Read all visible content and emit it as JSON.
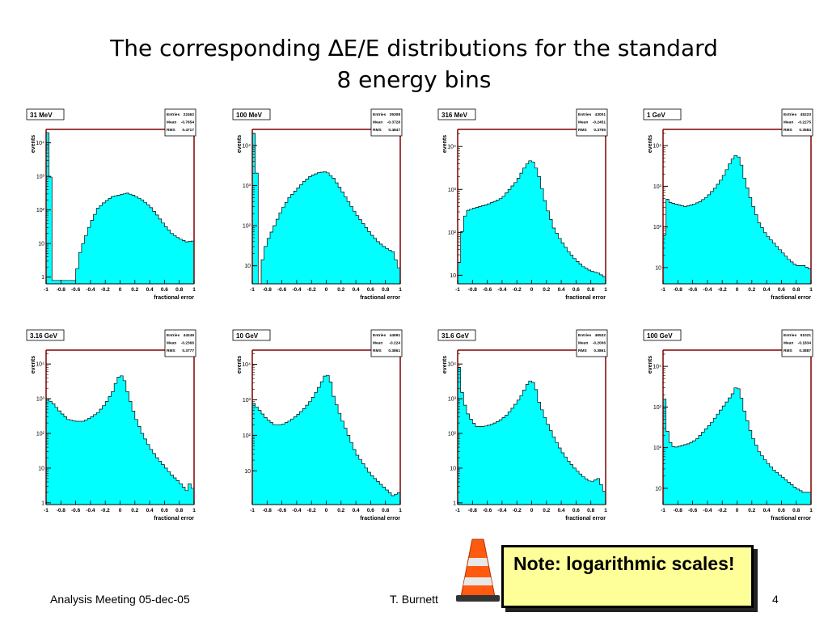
{
  "slide": {
    "title_line1": "The corresponding ∆E/E distributions for the standard",
    "title_line2": "8 energy bins",
    "note": "Note: logarithmic scales!",
    "footer_left": "Analysis Meeting 05-dec-05",
    "footer_center": "T. Burnett",
    "page_number": "4"
  },
  "colors": {
    "fill": "#00ffff",
    "frame": "#800000",
    "text": "#000000",
    "note_bg": "#ffff99"
  },
  "icons": [
    "traffic-cone-icon"
  ],
  "chart_data": [
    {
      "type": "area",
      "label": "31 MeV",
      "stats": {
        "entries_label": "Entries",
        "entries": "22462",
        "mean_label": "Mean",
        "mean": "-0.7654",
        "rms_label": "RMS",
        "rms": "0.4717"
      },
      "xlabel": "fractional error",
      "ylabel": "events",
      "xlim": [
        -1,
        1
      ],
      "ylim_exp": [
        -0.2,
        4.4
      ],
      "yscale": "log",
      "yticks": [
        {
          "v": 0,
          "label": "1"
        },
        {
          "v": 1,
          "label": "10"
        },
        {
          "v": 2,
          "label": "10²"
        },
        {
          "v": 3,
          "label": "10³"
        },
        {
          "v": 4,
          "label": "10⁴"
        }
      ],
      "xticks": [
        "-1",
        "-0.8",
        "-0.6",
        "-0.4",
        "-0.2",
        "0",
        "0.2",
        "0.4",
        "0.6",
        "0.8",
        "1"
      ],
      "curve": [
        [
          -0.98,
          4.3
        ],
        [
          -0.95,
          3.75
        ],
        [
          -0.9,
          -0.1
        ],
        [
          -0.75,
          -0.1
        ],
        [
          -0.6,
          -0.1
        ],
        [
          -0.56,
          0.6
        ],
        [
          -0.5,
          1.0
        ],
        [
          -0.4,
          1.6
        ],
        [
          -0.3,
          2.05
        ],
        [
          -0.2,
          2.25
        ],
        [
          -0.1,
          2.4
        ],
        [
          0.0,
          2.45
        ],
        [
          0.1,
          2.5
        ],
        [
          0.2,
          2.42
        ],
        [
          0.3,
          2.3
        ],
        [
          0.4,
          2.12
        ],
        [
          0.5,
          1.85
        ],
        [
          0.6,
          1.55
        ],
        [
          0.7,
          1.3
        ],
        [
          0.8,
          1.15
        ],
        [
          0.9,
          1.05
        ],
        [
          1.0,
          1.08
        ]
      ]
    },
    {
      "type": "area",
      "label": "100 MeV",
      "stats": {
        "entries_label": "Entries",
        "entries": "39308",
        "mean_label": "Mean",
        "mean": "-0.3728",
        "rms_label": "RMS",
        "rms": "0.4847"
      },
      "xlabel": "fractional error",
      "ylabel": "events",
      "xlim": [
        -1,
        1
      ],
      "ylim_exp": [
        0.55,
        4.4
      ],
      "yscale": "log",
      "yticks": [
        {
          "v": 1,
          "label": "10"
        },
        {
          "v": 2,
          "label": "10²"
        },
        {
          "v": 3,
          "label": "10³"
        },
        {
          "v": 4,
          "label": "10⁴"
        }
      ],
      "xticks": [
        "-1",
        "-0.8",
        "-0.6",
        "-0.4",
        "-0.2",
        "0",
        "0.2",
        "0.4",
        "0.6",
        "0.8",
        "1"
      ],
      "curve": [
        [
          -0.98,
          4.3
        ],
        [
          -0.95,
          4.0
        ],
        [
          -0.9,
          0.55
        ],
        [
          -0.85,
          1.3
        ],
        [
          -0.8,
          1.6
        ],
        [
          -0.7,
          2.0
        ],
        [
          -0.6,
          2.4
        ],
        [
          -0.5,
          2.7
        ],
        [
          -0.4,
          2.9
        ],
        [
          -0.3,
          3.1
        ],
        [
          -0.2,
          3.25
        ],
        [
          -0.1,
          3.32
        ],
        [
          0.0,
          3.35
        ],
        [
          0.1,
          3.18
        ],
        [
          0.2,
          2.9
        ],
        [
          0.3,
          2.6
        ],
        [
          0.4,
          2.3
        ],
        [
          0.5,
          2.05
        ],
        [
          0.6,
          1.8
        ],
        [
          0.7,
          1.6
        ],
        [
          0.8,
          1.45
        ],
        [
          0.9,
          1.35
        ],
        [
          1.0,
          0.85
        ]
      ]
    },
    {
      "type": "area",
      "label": "316 MeV",
      "stats": {
        "entries_label": "Entries",
        "entries": "43001",
        "mean_label": "Mean",
        "mean": "-0.2451",
        "rms_label": "RMS",
        "rms": "0.3755"
      },
      "xlabel": "fractional error",
      "ylabel": "events",
      "xlim": [
        -1,
        1
      ],
      "ylim_exp": [
        0.8,
        4.4
      ],
      "yscale": "log",
      "yticks": [
        {
          "v": 1,
          "label": "10"
        },
        {
          "v": 2,
          "label": "10²"
        },
        {
          "v": 3,
          "label": "10³"
        },
        {
          "v": 4,
          "label": "10⁴"
        }
      ],
      "xticks": [
        "-1",
        "-0.8",
        "-0.6",
        "-0.4",
        "-0.2",
        "0",
        "0.2",
        "0.4",
        "0.6",
        "0.8",
        "1"
      ],
      "curve": [
        [
          -0.98,
          1.3
        ],
        [
          -0.93,
          2.2
        ],
        [
          -0.88,
          2.5
        ],
        [
          -0.8,
          2.55
        ],
        [
          -0.7,
          2.6
        ],
        [
          -0.6,
          2.65
        ],
        [
          -0.5,
          2.72
        ],
        [
          -0.4,
          2.8
        ],
        [
          -0.3,
          3.0
        ],
        [
          -0.2,
          3.2
        ],
        [
          -0.1,
          3.5
        ],
        [
          -0.05,
          3.62
        ],
        [
          0.0,
          3.7
        ],
        [
          0.05,
          3.55
        ],
        [
          0.1,
          3.3
        ],
        [
          0.2,
          2.6
        ],
        [
          0.3,
          2.1
        ],
        [
          0.4,
          1.8
        ],
        [
          0.5,
          1.55
        ],
        [
          0.6,
          1.35
        ],
        [
          0.7,
          1.2
        ],
        [
          0.8,
          1.1
        ],
        [
          0.9,
          1.05
        ],
        [
          1.0,
          0.95
        ]
      ]
    },
    {
      "type": "area",
      "label": "1 GeV",
      "stats": {
        "entries_label": "Entries",
        "entries": "45223",
        "mean_label": "Mean",
        "mean": "-0.2275",
        "rms_label": "RMS",
        "rms": "0.3584"
      },
      "xlabel": "fractional error",
      "ylabel": "events",
      "xlim": [
        -1,
        1
      ],
      "ylim_exp": [
        0.6,
        4.4
      ],
      "yscale": "log",
      "yticks": [
        {
          "v": 1,
          "label": "10"
        },
        {
          "v": 2,
          "label": "10²"
        },
        {
          "v": 3,
          "label": "10³"
        },
        {
          "v": 4,
          "label": "10⁴"
        }
      ],
      "xticks": [
        "-1",
        "-0.8",
        "-0.6",
        "-0.4",
        "-0.2",
        "0",
        "0.2",
        "0.4",
        "0.6",
        "0.8",
        "1"
      ],
      "curve": [
        [
          -0.98,
          1.8
        ],
        [
          -0.95,
          2.7
        ],
        [
          -0.9,
          2.6
        ],
        [
          -0.8,
          2.55
        ],
        [
          -0.7,
          2.5
        ],
        [
          -0.6,
          2.55
        ],
        [
          -0.5,
          2.62
        ],
        [
          -0.4,
          2.75
        ],
        [
          -0.3,
          2.95
        ],
        [
          -0.2,
          3.2
        ],
        [
          -0.1,
          3.55
        ],
        [
          -0.05,
          3.7
        ],
        [
          0.0,
          3.8
        ],
        [
          0.05,
          3.6
        ],
        [
          0.1,
          3.2
        ],
        [
          0.2,
          2.6
        ],
        [
          0.3,
          2.1
        ],
        [
          0.4,
          1.8
        ],
        [
          0.5,
          1.6
        ],
        [
          0.6,
          1.4
        ],
        [
          0.7,
          1.2
        ],
        [
          0.8,
          1.05
        ],
        [
          0.9,
          1.05
        ],
        [
          1.0,
          0.95
        ]
      ]
    },
    {
      "type": "area",
      "label": "3.16 GeV",
      "stats": {
        "entries_label": "Entries",
        "entries": "44249",
        "mean_label": "Mean",
        "mean": "-0.2366",
        "rms_label": "RMS",
        "rms": "0.3777"
      },
      "xlabel": "fractional error",
      "ylabel": "events",
      "xlim": [
        -1,
        1
      ],
      "ylim_exp": [
        -0.05,
        4.4
      ],
      "yscale": "log",
      "yticks": [
        {
          "v": 0,
          "label": "1"
        },
        {
          "v": 1,
          "label": "10"
        },
        {
          "v": 2,
          "label": "10²"
        },
        {
          "v": 3,
          "label": "10³"
        },
        {
          "v": 4,
          "label": "10⁴"
        }
      ],
      "xticks": [
        "-1",
        "-0.8",
        "-0.6",
        "-0.4",
        "-0.2",
        "0",
        "0.2",
        "0.4",
        "0.6",
        "0.8",
        "1"
      ],
      "curve": [
        [
          -0.98,
          3.0
        ],
        [
          -0.9,
          2.85
        ],
        [
          -0.8,
          2.6
        ],
        [
          -0.7,
          2.4
        ],
        [
          -0.6,
          2.35
        ],
        [
          -0.5,
          2.35
        ],
        [
          -0.4,
          2.45
        ],
        [
          -0.3,
          2.6
        ],
        [
          -0.2,
          2.85
        ],
        [
          -0.1,
          3.2
        ],
        [
          -0.05,
          3.5
        ],
        [
          0.0,
          3.7
        ],
        [
          0.05,
          3.6
        ],
        [
          0.1,
          3.2
        ],
        [
          0.2,
          2.5
        ],
        [
          0.3,
          2.0
        ],
        [
          0.4,
          1.6
        ],
        [
          0.5,
          1.3
        ],
        [
          0.6,
          1.05
        ],
        [
          0.7,
          0.8
        ],
        [
          0.8,
          0.6
        ],
        [
          0.9,
          0.35
        ],
        [
          0.95,
          0.6
        ],
        [
          1.0,
          0.3
        ]
      ]
    },
    {
      "type": "area",
      "label": "10 GeV",
      "stats": {
        "entries_label": "Entries",
        "entries": "44591",
        "mean_label": "Mean",
        "mean": "-0.224",
        "rms_label": "RMS",
        "rms": "0.3861"
      },
      "xlabel": "fractional error",
      "ylabel": "events",
      "xlim": [
        -1,
        1
      ],
      "ylim_exp": [
        0.05,
        4.4
      ],
      "yscale": "log",
      "yticks": [
        {
          "v": 1,
          "label": "10"
        },
        {
          "v": 2,
          "label": "10²"
        },
        {
          "v": 3,
          "label": "10³"
        },
        {
          "v": 4,
          "label": "10⁴"
        }
      ],
      "xticks": [
        "-1",
        "-0.8",
        "-0.6",
        "-0.4",
        "-0.2",
        "0",
        "0.2",
        "0.4",
        "0.6",
        "0.8",
        "1"
      ],
      "curve": [
        [
          -0.98,
          2.9
        ],
        [
          -0.9,
          2.7
        ],
        [
          -0.8,
          2.45
        ],
        [
          -0.7,
          2.3
        ],
        [
          -0.6,
          2.3
        ],
        [
          -0.5,
          2.4
        ],
        [
          -0.4,
          2.55
        ],
        [
          -0.3,
          2.75
        ],
        [
          -0.2,
          3.0
        ],
        [
          -0.1,
          3.35
        ],
        [
          -0.05,
          3.55
        ],
        [
          0.0,
          3.75
        ],
        [
          0.05,
          3.6
        ],
        [
          0.1,
          3.1
        ],
        [
          0.2,
          2.5
        ],
        [
          0.3,
          2.0
        ],
        [
          0.4,
          1.5
        ],
        [
          0.5,
          1.2
        ],
        [
          0.6,
          0.9
        ],
        [
          0.7,
          0.7
        ],
        [
          0.8,
          0.5
        ],
        [
          0.9,
          0.3
        ],
        [
          1.0,
          0.4
        ]
      ]
    },
    {
      "type": "area",
      "label": "31.6 GeV",
      "stats": {
        "entries_label": "Entries",
        "entries": "46532",
        "mean_label": "Mean",
        "mean": "-0.2006",
        "rms_label": "RMS",
        "rms": "0.3861"
      },
      "xlabel": "fractional error",
      "ylabel": "events",
      "xlim": [
        -1,
        1
      ],
      "ylim_exp": [
        -0.05,
        4.4
      ],
      "yscale": "log",
      "yticks": [
        {
          "v": 0,
          "label": "1"
        },
        {
          "v": 1,
          "label": "10"
        },
        {
          "v": 2,
          "label": "10²"
        },
        {
          "v": 3,
          "label": "10³"
        },
        {
          "v": 4,
          "label": "10⁴"
        }
      ],
      "xticks": [
        "-1",
        "-0.8",
        "-0.6",
        "-0.4",
        "-0.2",
        "0",
        "0.2",
        "0.4",
        "0.6",
        "0.8",
        "1"
      ],
      "curve": [
        [
          -0.98,
          3.9
        ],
        [
          -0.93,
          3.0
        ],
        [
          -0.85,
          2.5
        ],
        [
          -0.75,
          2.2
        ],
        [
          -0.65,
          2.2
        ],
        [
          -0.55,
          2.25
        ],
        [
          -0.45,
          2.35
        ],
        [
          -0.35,
          2.5
        ],
        [
          -0.25,
          2.75
        ],
        [
          -0.15,
          3.05
        ],
        [
          -0.05,
          3.45
        ],
        [
          0.0,
          3.55
        ],
        [
          0.05,
          3.35
        ],
        [
          0.1,
          2.9
        ],
        [
          0.2,
          2.35
        ],
        [
          0.3,
          1.9
        ],
        [
          0.4,
          1.5
        ],
        [
          0.5,
          1.2
        ],
        [
          0.6,
          0.95
        ],
        [
          0.7,
          0.75
        ],
        [
          0.8,
          0.6
        ],
        [
          0.9,
          0.7
        ],
        [
          1.0,
          0.25
        ]
      ]
    },
    {
      "type": "area",
      "label": "100 GeV",
      "stats": {
        "entries_label": "Entries",
        "entries": "51021",
        "mean_label": "Mean",
        "mean": "-0.1834",
        "rms_label": "RMS",
        "rms": "0.3887"
      },
      "xlabel": "fractional error",
      "ylabel": "events",
      "xlim": [
        -1,
        1
      ],
      "ylim_exp": [
        0.6,
        4.4
      ],
      "yscale": "log",
      "yticks": [
        {
          "v": 1,
          "label": "10"
        },
        {
          "v": 2,
          "label": "10²"
        },
        {
          "v": 3,
          "label": "10³"
        },
        {
          "v": 4,
          "label": "10⁴"
        }
      ],
      "xticks": [
        "-1",
        "-0.8",
        "-0.6",
        "-0.4",
        "-0.2",
        "0",
        "0.2",
        "0.4",
        "0.6",
        "0.8",
        "1"
      ],
      "curve": [
        [
          -0.98,
          3.2
        ],
        [
          -0.93,
          2.2
        ],
        [
          -0.85,
          2.0
        ],
        [
          -0.75,
          2.05
        ],
        [
          -0.65,
          2.1
        ],
        [
          -0.55,
          2.2
        ],
        [
          -0.45,
          2.4
        ],
        [
          -0.35,
          2.6
        ],
        [
          -0.25,
          2.85
        ],
        [
          -0.15,
          3.1
        ],
        [
          -0.05,
          3.35
        ],
        [
          0.0,
          3.55
        ],
        [
          0.05,
          3.3
        ],
        [
          0.1,
          2.9
        ],
        [
          0.2,
          2.3
        ],
        [
          0.3,
          1.9
        ],
        [
          0.4,
          1.65
        ],
        [
          0.5,
          1.45
        ],
        [
          0.6,
          1.3
        ],
        [
          0.7,
          1.15
        ],
        [
          0.8,
          1.0
        ],
        [
          0.9,
          0.9
        ],
        [
          1.0,
          0.9
        ]
      ]
    }
  ]
}
